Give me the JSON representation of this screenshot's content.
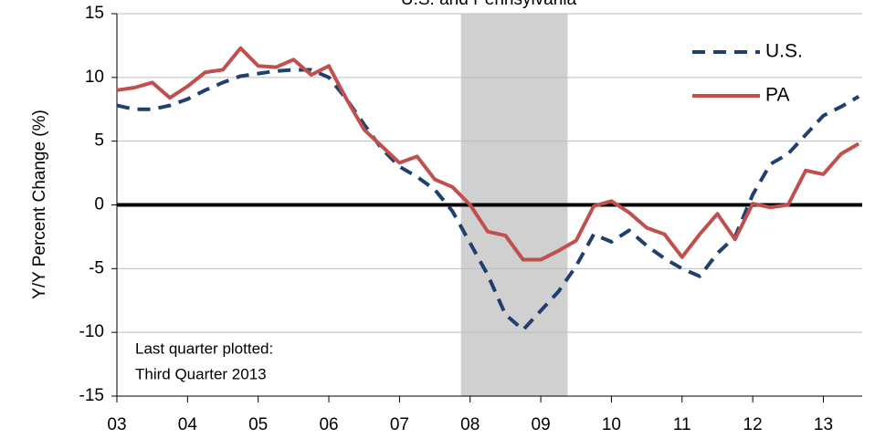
{
  "chart_data": {
    "type": "line",
    "title": "U.S. and Pennsylvania",
    "y_label": "Y/Y Percent Change (%)",
    "annotation": [
      "Last quarter plotted:",
      "Third Quarter 2013"
    ],
    "x": [
      2003,
      2003.25,
      2003.5,
      2003.75,
      2004,
      2004.25,
      2004.5,
      2004.75,
      2005,
      2005.25,
      2005.5,
      2005.75,
      2006,
      2006.25,
      2006.5,
      2006.75,
      2007,
      2007.25,
      2007.5,
      2007.75,
      2008,
      2008.25,
      2008.5,
      2008.75,
      2009,
      2009.25,
      2009.5,
      2009.75,
      2010,
      2010.25,
      2010.5,
      2010.75,
      2011,
      2011.25,
      2011.5,
      2011.75,
      2012,
      2012.25,
      2012.5,
      2012.75,
      2013,
      2013.25,
      2013.5
    ],
    "series": [
      {
        "name": "U.S.",
        "color": "#1f3f6e",
        "dash": true,
        "values": [
          7.8,
          7.5,
          7.5,
          7.8,
          8.3,
          9.0,
          9.6,
          10.1,
          10.3,
          10.5,
          10.6,
          10.6,
          10.0,
          8.3,
          6.3,
          4.4,
          3.0,
          2.2,
          1.2,
          -0.5,
          -3.0,
          -5.5,
          -8.6,
          -9.8,
          -8.3,
          -6.8,
          -4.8,
          -2.3,
          -2.9,
          -2.0,
          -3.2,
          -4.2,
          -5.0,
          -5.6,
          -3.8,
          -2.5,
          0.8,
          3.2,
          4.0,
          5.5,
          7.0,
          7.7,
          8.5
        ]
      },
      {
        "name": "PA",
        "color": "#c0504d",
        "dash": false,
        "values": [
          9.0,
          9.2,
          9.6,
          8.4,
          9.3,
          10.4,
          10.6,
          12.3,
          10.9,
          10.8,
          11.4,
          10.2,
          10.9,
          8.3,
          5.9,
          4.6,
          3.3,
          3.8,
          2.0,
          1.4,
          0.0,
          -2.1,
          -2.4,
          -4.3,
          -4.3,
          -3.6,
          -2.8,
          -0.1,
          0.3,
          -0.6,
          -1.8,
          -2.3,
          -4.1,
          -2.3,
          -0.7,
          -2.7,
          0.1,
          -0.2,
          0.0,
          2.7,
          2.4,
          4.0,
          4.8
        ]
      }
    ],
    "recession": [
      2007.87,
      2009.38
    ],
    "xlim": [
      2003,
      2013.55
    ],
    "xticks": [
      {
        "value": 2003,
        "label": "03"
      },
      {
        "value": 2004,
        "label": "04"
      },
      {
        "value": 2005,
        "label": "05"
      },
      {
        "value": 2006,
        "label": "06"
      },
      {
        "value": 2007,
        "label": "07"
      },
      {
        "value": 2008,
        "label": "08"
      },
      {
        "value": 2009,
        "label": "09"
      },
      {
        "value": 2010,
        "label": "10"
      },
      {
        "value": 2011,
        "label": "11"
      },
      {
        "value": 2012,
        "label": "12"
      },
      {
        "value": 2013,
        "label": "13"
      }
    ],
    "ylim": [
      -15,
      15
    ],
    "yticks": [
      -15,
      -10,
      -5,
      0,
      5,
      10,
      15
    ],
    "grid": true
  }
}
